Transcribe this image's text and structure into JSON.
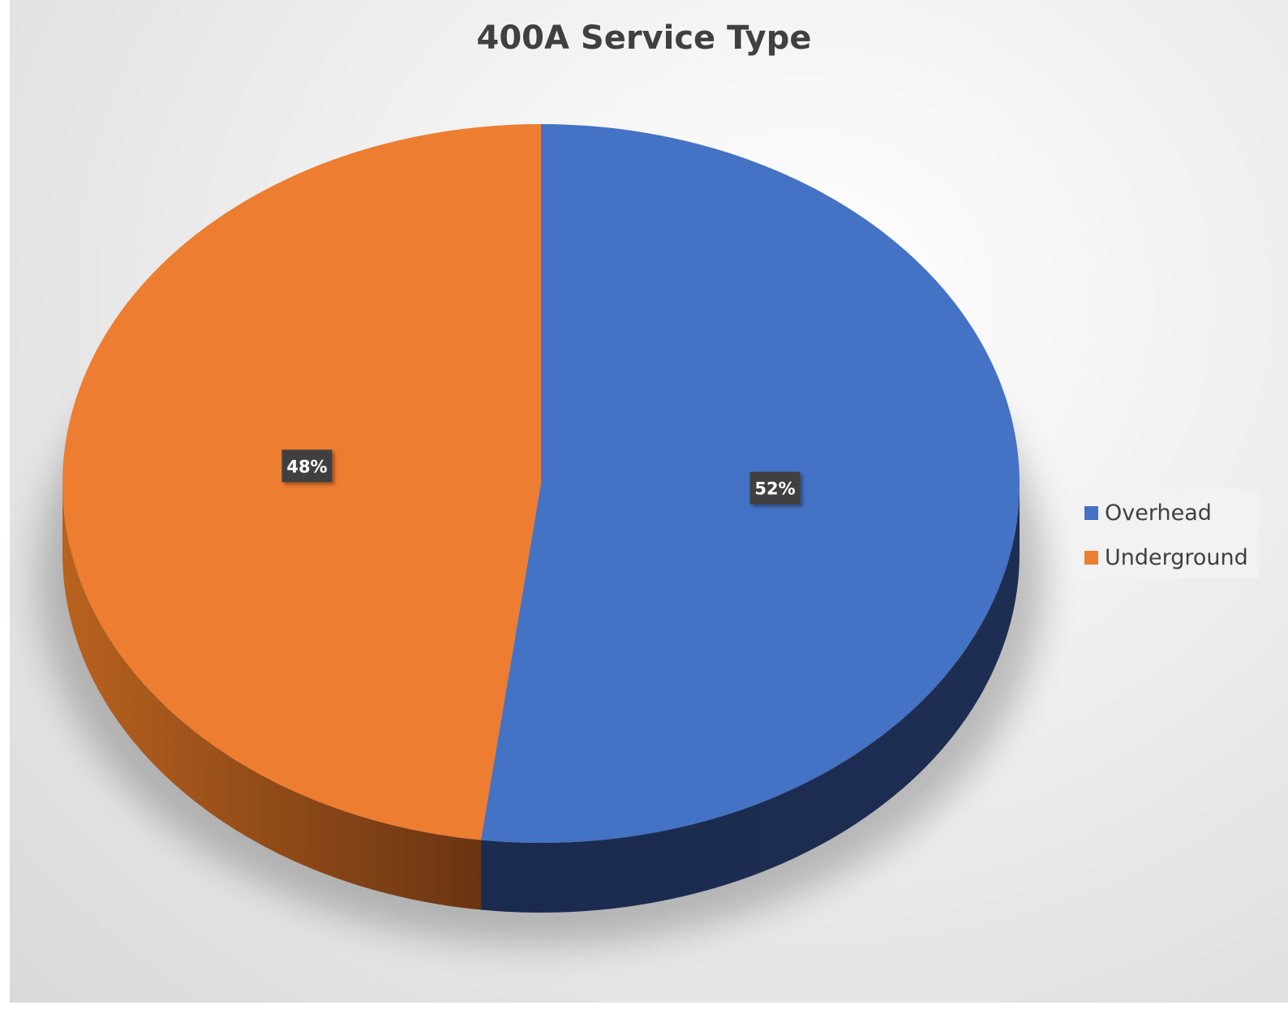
{
  "chart_data": {
    "type": "pie",
    "title": "400A Service Type",
    "slices": [
      {
        "name": "Overhead",
        "value": 52,
        "label": "52%",
        "color": "#4472c4",
        "side_color": "#1d2b4f"
      },
      {
        "name": "Underground",
        "value": 48,
        "label": "48%",
        "color": "#ed7d31",
        "side_color": "#7e3f14"
      }
    ],
    "legend_position": "right"
  }
}
